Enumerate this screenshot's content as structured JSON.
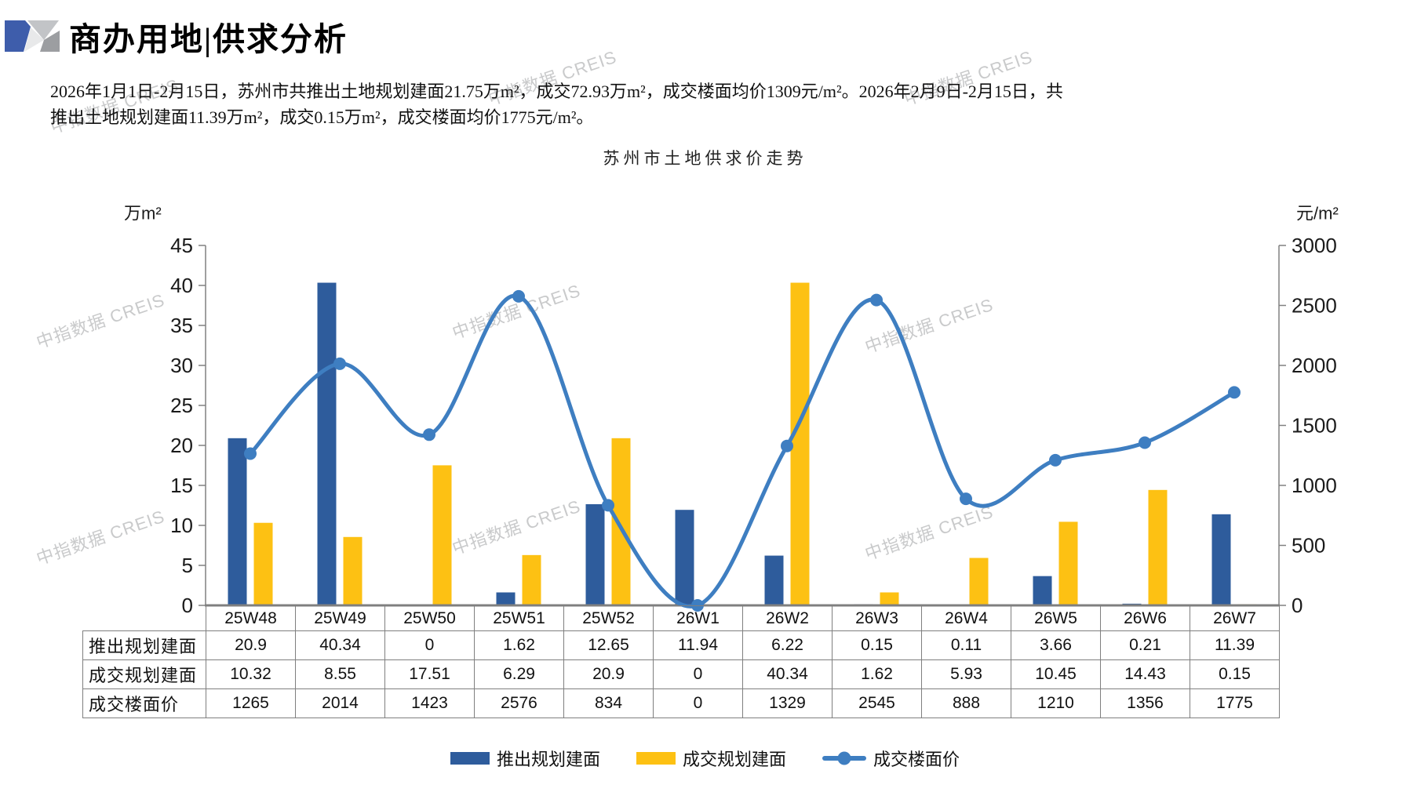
{
  "header": {
    "logo_icon": "creis-logo-icon",
    "title": "商办用地|供求分析"
  },
  "summary": {
    "lines": [
      "2026年1月1日-2月15日，苏州市共推出土地规划建面21.75万m²，成交72.93万m²，成交楼面均价1309元/m²。2026年2月9日-2月15日，共",
      "推出土地规划建面11.39万m²，成交0.15万m²，成交楼面均价1775元/m²。"
    ]
  },
  "watermark": {
    "text": "中指数据 CREIS",
    "color": "#c9cacb"
  },
  "chart_data": {
    "type": "combo",
    "title": "苏州市土地供求价走势",
    "categories": [
      "25W48",
      "25W49",
      "25W50",
      "25W51",
      "25W52",
      "26W1",
      "26W2",
      "26W3",
      "26W4",
      "26W5",
      "26W6",
      "26W7"
    ],
    "series": [
      {
        "name": "推出规划建面",
        "type": "bar",
        "axis": "left",
        "color": "#2E5C9C",
        "values": [
          20.9,
          40.34,
          0,
          1.62,
          12.65,
          11.94,
          6.22,
          0.15,
          0.11,
          3.66,
          0.21,
          11.39
        ]
      },
      {
        "name": "成交规划建面",
        "type": "bar",
        "axis": "left",
        "color": "#FDC113",
        "values": [
          10.32,
          8.55,
          17.51,
          6.29,
          20.9,
          0,
          40.34,
          1.62,
          5.93,
          10.45,
          14.43,
          0.15
        ]
      },
      {
        "name": "成交楼面价",
        "type": "line",
        "axis": "right",
        "color": "#3E7EC1",
        "values": [
          1265,
          2014,
          1423,
          2576,
          834,
          0,
          1329,
          2545,
          888,
          1210,
          1356,
          1775
        ]
      }
    ],
    "left_axis": {
      "label": "万m²",
      "min": 0,
      "max": 45,
      "step": 5
    },
    "right_axis": {
      "label": "元/m²",
      "min": 0,
      "max": 3000,
      "step": 500
    },
    "legend_position": "bottom",
    "grid": false,
    "table_row_headers": [
      "推出规划建面",
      "成交规划建面",
      "成交楼面价"
    ],
    "colors": {
      "axis_line": "#808080",
      "table_border": "#7f7f7f",
      "tick_text": "#1a1a1a"
    }
  }
}
